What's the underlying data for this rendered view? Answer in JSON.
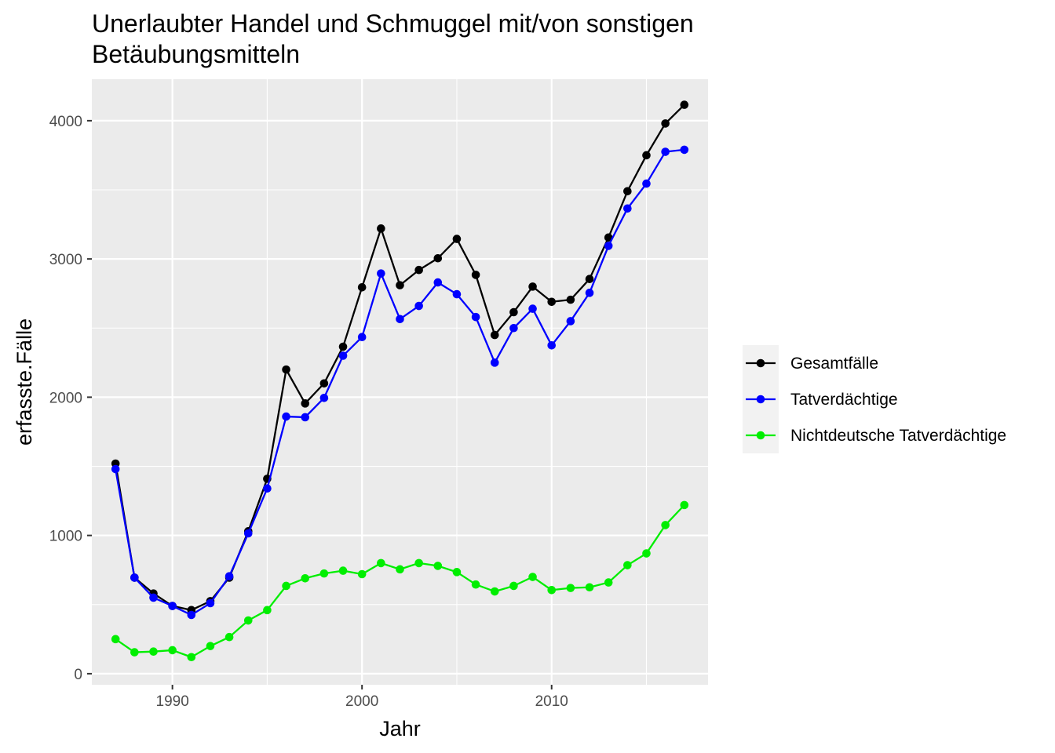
{
  "chart_data": {
    "type": "line",
    "title_line1": "Unerlaubter Handel und Schmuggel mit/von sonstigen",
    "title_line2": "Betäubungsmitteln",
    "xlabel": "Jahr",
    "ylabel": "erfasste.Fälle",
    "xlim": [
      1985.75,
      2018.25
    ],
    "ylim": [
      -80,
      4300
    ],
    "x_ticks": [
      1990,
      2000,
      2010
    ],
    "x_tick_labels": [
      "1990",
      "2000",
      "2010"
    ],
    "y_ticks": [
      0,
      1000,
      2000,
      3000,
      4000
    ],
    "y_tick_labels": [
      "0",
      "1000",
      "2000",
      "3000",
      "4000"
    ],
    "grid": true,
    "legend_position": "right",
    "x": [
      1987,
      1988,
      1989,
      1990,
      1991,
      1992,
      1993,
      1994,
      1995,
      1996,
      1997,
      1998,
      1999,
      2000,
      2001,
      2002,
      2003,
      2004,
      2005,
      2006,
      2007,
      2008,
      2009,
      2010,
      2011,
      2012,
      2013,
      2014,
      2015,
      2016,
      2017
    ],
    "series": [
      {
        "name": "Gesamtfälle",
        "color": "#000000",
        "values": [
          1520,
          695,
          580,
          490,
          460,
          525,
          695,
          1030,
          1410,
          2200,
          1955,
          2100,
          2365,
          2795,
          3220,
          2810,
          2920,
          3005,
          3145,
          2885,
          2450,
          2615,
          2800,
          2690,
          2705,
          2855,
          3155,
          3490,
          3750,
          3980,
          4115
        ]
      },
      {
        "name": "Tatverdächtige",
        "color": "#0000ff",
        "values": [
          1480,
          695,
          550,
          490,
          425,
          510,
          705,
          1015,
          1340,
          1860,
          1855,
          1995,
          2300,
          2435,
          2895,
          2565,
          2660,
          2830,
          2745,
          2580,
          2250,
          2500,
          2640,
          2375,
          2550,
          2755,
          3095,
          3365,
          3545,
          3775,
          3790
        ]
      },
      {
        "name": "Nichtdeutsche Tatverdächtige",
        "color": "#00ee00",
        "values": [
          250,
          155,
          160,
          170,
          120,
          200,
          265,
          385,
          460,
          635,
          690,
          725,
          745,
          720,
          800,
          755,
          800,
          780,
          735,
          645,
          595,
          635,
          700,
          605,
          620,
          625,
          660,
          785,
          870,
          1075,
          1220
        ]
      }
    ]
  },
  "style": {
    "panel_background": "#ebebeb",
    "gridline_color": "#ffffff",
    "tick_color": "#333333",
    "legend_key_background": "#f2f2f2"
  }
}
